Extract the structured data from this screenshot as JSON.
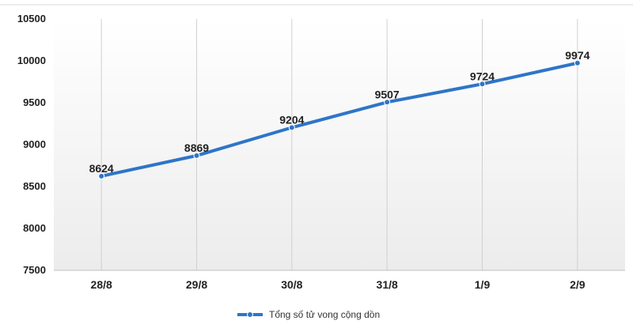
{
  "chart_data": {
    "type": "line",
    "categories": [
      "28/8",
      "29/8",
      "30/8",
      "31/8",
      "1/9",
      "2/9"
    ],
    "series": [
      {
        "name": "Tổng số tử vong cộng dồn",
        "values": [
          8624,
          8869,
          9204,
          9507,
          9724,
          9974
        ],
        "color": "#2e75c8"
      }
    ],
    "ylim": [
      7500,
      10500
    ],
    "yticks": [
      7500,
      8000,
      8500,
      9000,
      9500,
      10000,
      10500
    ],
    "grid": "vertical",
    "legend": "bottom-center",
    "data_labels": true
  }
}
